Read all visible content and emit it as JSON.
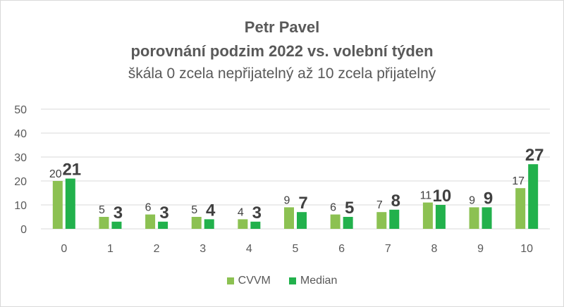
{
  "chart_data": {
    "type": "bar",
    "title": "Petr Pavel",
    "subtitle": "porovnání podzim 2022 vs. volební týden",
    "subtitle2": "škála 0 zcela nepřijatelný až 10 zcela přijatelný",
    "categories": [
      "0",
      "1",
      "2",
      "3",
      "4",
      "5",
      "6",
      "7",
      "8",
      "9",
      "10"
    ],
    "series": [
      {
        "name": "CVVM",
        "color": "#8cc152",
        "values": [
          20,
          5,
          6,
          5,
          4,
          9,
          6,
          7,
          11,
          9,
          17
        ]
      },
      {
        "name": "Median",
        "color": "#22b14c",
        "values": [
          21,
          3,
          3,
          4,
          3,
          7,
          5,
          8,
          10,
          9,
          27
        ]
      }
    ],
    "ylim": [
      0,
      50
    ],
    "yticks": [
      "0",
      "10",
      "20",
      "30",
      "40",
      "50"
    ],
    "grid": true,
    "legend_position": "bottom"
  }
}
